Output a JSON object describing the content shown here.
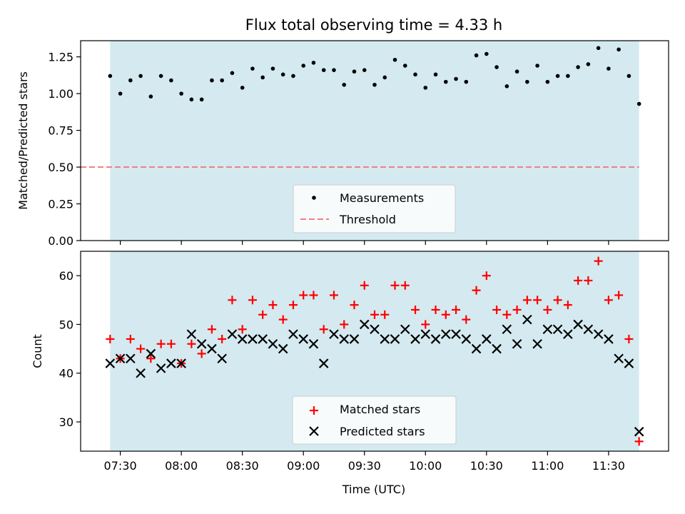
{
  "chart_data": [
    {
      "type": "scatter",
      "title": "Flux total observing time = 4.33 h",
      "ylabel": "Matched/Predicted stars",
      "ylim": [
        0.0,
        1.36
      ],
      "yticks": [
        "0.00",
        "0.25",
        "0.50",
        "0.75",
        "1.00",
        "1.25"
      ],
      "shaded_region": {
        "color": "#d4eaf0",
        "x_start": "07:25",
        "x_end": "11:45"
      },
      "threshold": {
        "name": "Threshold",
        "value": 0.5,
        "color": "#f08080"
      },
      "series": [
        {
          "name": "Measurements",
          "color": "#000000",
          "x": [
            "07:25",
            "07:30",
            "07:35",
            "07:40",
            "07:45",
            "07:50",
            "07:55",
            "08:00",
            "08:05",
            "08:10",
            "08:15",
            "08:20",
            "08:25",
            "08:30",
            "08:35",
            "08:40",
            "08:45",
            "08:50",
            "08:55",
            "09:00",
            "09:05",
            "09:10",
            "09:15",
            "09:20",
            "09:25",
            "09:30",
            "09:35",
            "09:40",
            "09:45",
            "09:50",
            "09:55",
            "10:00",
            "10:05",
            "10:10",
            "10:15",
            "10:20",
            "10:25",
            "10:30",
            "10:35",
            "10:40",
            "10:45",
            "10:50",
            "10:55",
            "11:00",
            "11:05",
            "11:10",
            "11:15",
            "11:20",
            "11:25",
            "11:30",
            "11:35",
            "11:40",
            "11:45"
          ],
          "values": [
            1.12,
            1.0,
            1.09,
            1.12,
            0.98,
            1.12,
            1.09,
            1.0,
            0.96,
            0.96,
            1.09,
            1.09,
            1.14,
            1.04,
            1.17,
            1.11,
            1.17,
            1.13,
            1.12,
            1.19,
            1.21,
            1.16,
            1.16,
            1.06,
            1.15,
            1.16,
            1.06,
            1.11,
            1.23,
            1.19,
            1.13,
            1.04,
            1.13,
            1.08,
            1.1,
            1.08,
            1.26,
            1.27,
            1.18,
            1.05,
            1.15,
            1.08,
            1.19,
            1.08,
            1.12,
            1.12,
            1.18,
            1.2,
            1.31,
            1.17,
            1.3,
            1.12,
            0.93
          ]
        }
      ]
    },
    {
      "type": "scatter",
      "xlabel": "Time (UTC)",
      "ylabel": "Count",
      "ylim": [
        24,
        65
      ],
      "yticks": [
        "30",
        "40",
        "50",
        "60"
      ],
      "xticks": [
        "07:30",
        "08:00",
        "08:30",
        "09:00",
        "09:30",
        "10:00",
        "10:30",
        "11:00",
        "11:30"
      ],
      "shaded_region": {
        "color": "#d4eaf0",
        "x_start": "07:25",
        "x_end": "11:45"
      },
      "series": [
        {
          "name": "Matched stars",
          "marker": "+",
          "color": "#ff0000",
          "x": [
            "07:25",
            "07:30",
            "07:35",
            "07:40",
            "07:45",
            "07:50",
            "07:55",
            "08:00",
            "08:05",
            "08:10",
            "08:15",
            "08:20",
            "08:25",
            "08:30",
            "08:35",
            "08:40",
            "08:45",
            "08:50",
            "08:55",
            "09:00",
            "09:05",
            "09:10",
            "09:15",
            "09:20",
            "09:25",
            "09:30",
            "09:35",
            "09:40",
            "09:45",
            "09:50",
            "09:55",
            "10:00",
            "10:05",
            "10:10",
            "10:15",
            "10:20",
            "10:25",
            "10:30",
            "10:35",
            "10:40",
            "10:45",
            "10:50",
            "10:55",
            "11:00",
            "11:05",
            "11:10",
            "11:15",
            "11:20",
            "11:25",
            "11:30",
            "11:35",
            "11:40",
            "11:45"
          ],
          "values": [
            47,
            43,
            47,
            45,
            43,
            46,
            46,
            42,
            46,
            44,
            49,
            47,
            55,
            49,
            55,
            52,
            54,
            51,
            54,
            56,
            56,
            49,
            56,
            50,
            54,
            58,
            52,
            52,
            58,
            58,
            53,
            50,
            53,
            52,
            53,
            51,
            57,
            60,
            53,
            52,
            53,
            55,
            55,
            53,
            55,
            54,
            59,
            59,
            63,
            55,
            56,
            47,
            26
          ]
        },
        {
          "name": "Predicted stars",
          "marker": "x",
          "color": "#000000",
          "x": [
            "07:25",
            "07:30",
            "07:35",
            "07:40",
            "07:45",
            "07:50",
            "07:55",
            "08:00",
            "08:05",
            "08:10",
            "08:15",
            "08:20",
            "08:25",
            "08:30",
            "08:35",
            "08:40",
            "08:45",
            "08:50",
            "08:55",
            "09:00",
            "09:05",
            "09:10",
            "09:15",
            "09:20",
            "09:25",
            "09:30",
            "09:35",
            "09:40",
            "09:45",
            "09:50",
            "09:55",
            "10:00",
            "10:05",
            "10:10",
            "10:15",
            "10:20",
            "10:25",
            "10:30",
            "10:35",
            "10:40",
            "10:45",
            "10:50",
            "10:55",
            "11:00",
            "11:05",
            "11:10",
            "11:15",
            "11:20",
            "11:25",
            "11:30",
            "11:35",
            "11:40",
            "11:45"
          ],
          "values": [
            42,
            43,
            43,
            40,
            44,
            41,
            42,
            42,
            48,
            46,
            45,
            43,
            48,
            47,
            47,
            47,
            46,
            45,
            48,
            47,
            46,
            42,
            48,
            47,
            47,
            50,
            49,
            47,
            47,
            49,
            47,
            48,
            47,
            48,
            48,
            47,
            45,
            47,
            45,
            49,
            46,
            51,
            46,
            49,
            49,
            48,
            50,
            49,
            48,
            47,
            43,
            42,
            28
          ]
        }
      ]
    }
  ]
}
